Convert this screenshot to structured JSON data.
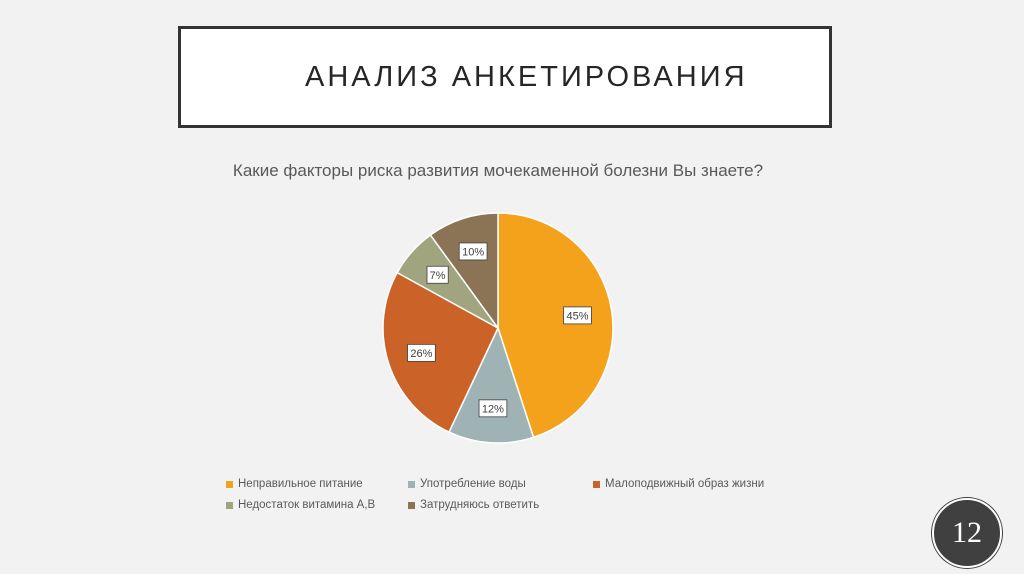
{
  "slide": {
    "title": "АНАЛИЗ АНКЕТИРОВАНИЯ",
    "page_number": "12"
  },
  "chart_data": {
    "type": "pie",
    "title": "Какие факторы риска развития мочекаменной болезни Вы знаете?",
    "categories": [
      "Неправильное питание",
      "Употребление воды",
      "Малоподвижный образ жизни",
      "Недостаток витамина А,В",
      "Затрудняюсь ответить"
    ],
    "values": [
      45,
      12,
      26,
      7,
      10
    ],
    "labels": [
      "45%",
      "12%",
      "26%",
      "7%",
      "10%"
    ],
    "colors": [
      "#f4a21c",
      "#9fb3b5",
      "#cb6228",
      "#a0a57f",
      "#8b7356"
    ],
    "legend_position": "bottom"
  }
}
